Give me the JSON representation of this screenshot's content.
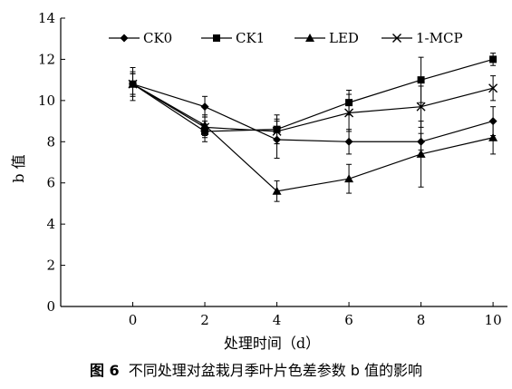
{
  "chart_data": {
    "type": "line",
    "title": "",
    "xlabel": "处理时间（d）",
    "ylabel": "b 值",
    "x": [
      0,
      2,
      4,
      6,
      8,
      10
    ],
    "xlim": [
      -2,
      10.4
    ],
    "ylim": [
      0,
      14
    ],
    "xticks": [
      0,
      2,
      4,
      6,
      8,
      10
    ],
    "yticks": [
      0,
      2,
      4,
      6,
      8,
      10,
      12,
      14
    ],
    "grid": false,
    "legend_position": "top",
    "series": [
      {
        "name": "CK0",
        "marker": "diamond",
        "values": [
          10.8,
          9.7,
          8.1,
          8.0,
          8.0,
          9.0
        ],
        "errors": [
          0.8,
          0.5,
          0.9,
          0.6,
          0.4,
          0.7
        ]
      },
      {
        "name": "CK1",
        "marker": "square",
        "values": [
          10.8,
          8.5,
          8.6,
          9.9,
          11.0,
          12.0
        ],
        "errors": [
          0.5,
          0.5,
          0.7,
          0.6,
          1.1,
          0.3
        ]
      },
      {
        "name": "LED",
        "marker": "triangle",
        "values": [
          10.8,
          8.8,
          5.6,
          6.2,
          7.4,
          8.2
        ],
        "errors": [
          0.5,
          0.5,
          0.5,
          0.7,
          1.6,
          0.8
        ]
      },
      {
        "name": "1-MCP",
        "marker": "x",
        "values": [
          10.8,
          8.7,
          8.5,
          9.4,
          9.7,
          10.6
        ],
        "errors": [
          0.6,
          0.5,
          0.6,
          0.9,
          1.0,
          0.6
        ]
      }
    ]
  },
  "caption": {
    "number": "图 6",
    "text": "不同处理对盆栽月季叶片色差参数 b 值的影响"
  }
}
